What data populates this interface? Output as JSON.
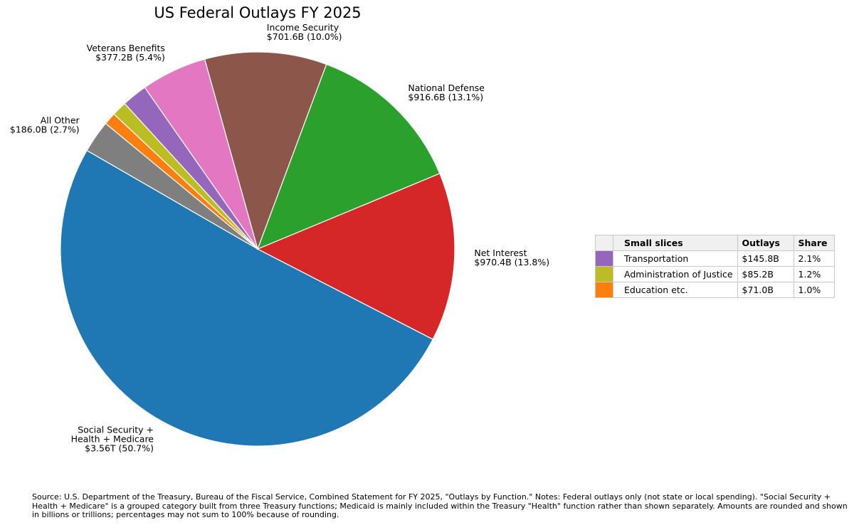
{
  "chart_data": {
    "type": "pie",
    "title": "US Federal Outlays FY 2025",
    "start_angle_deg": 150,
    "direction": "counterclockwise",
    "slices": [
      {
        "label": "Social Security +\nHealth + Medicare",
        "value": 3560,
        "value_text": "$3.56T",
        "pct_text": "50.7%",
        "color": "#1f77b4",
        "labeled": true
      },
      {
        "label": "Net Interest",
        "value": 970.4,
        "value_text": "$970.4B",
        "pct_text": "13.8%",
        "color": "#d62728",
        "labeled": true
      },
      {
        "label": "National Defense",
        "value": 916.6,
        "value_text": "$916.6B",
        "pct_text": "13.1%",
        "color": "#2ca02c",
        "labeled": true
      },
      {
        "label": "Income Security",
        "value": 701.6,
        "value_text": "$701.6B",
        "pct_text": "10.0%",
        "color": "#8c564b",
        "labeled": true
      },
      {
        "label": "Veterans Benefits",
        "value": 377.2,
        "value_text": "$377.2B",
        "pct_text": "5.4%",
        "color": "#e377c2",
        "labeled": true
      },
      {
        "label": "Transportation",
        "value": 145.8,
        "value_text": "$145.8B",
        "pct_text": "2.1%",
        "color": "#9467bd",
        "labeled": false
      },
      {
        "label": "Administration of Justice",
        "value": 85.2,
        "value_text": "$85.2B",
        "pct_text": "1.2%",
        "color": "#bcbd22",
        "labeled": false
      },
      {
        "label": "Education etc.",
        "value": 71.0,
        "value_text": "$71.0B",
        "pct_text": "1.0%",
        "color": "#ff7f0e",
        "labeled": false
      },
      {
        "label": "All Other",
        "value": 186.0,
        "value_text": "$186.0B",
        "pct_text": "2.7%",
        "color": "#7f7f7f",
        "labeled": true
      }
    ]
  },
  "table": {
    "headers": [
      "Small slices",
      "Outlays",
      "Share"
    ],
    "rows": [
      {
        "name": "Transportation",
        "outlays": "$145.8B",
        "share": "2.1%",
        "color": "#9467bd"
      },
      {
        "name": "Administration of Justice",
        "outlays": "$85.2B",
        "share": "1.2%",
        "color": "#bcbd22"
      },
      {
        "name": "Education etc.",
        "outlays": "$71.0B",
        "share": "1.0%",
        "color": "#ff7f0e"
      }
    ]
  },
  "source_note": "Source: U.S. Department of the Treasury, Bureau of the Fiscal Service, Combined Statement for FY 2025, \"Outlays by Function.\" Notes: Federal outlays only (not state or local spending). \"Social Security + Health + Medicare\" is a grouped category built from three Treasury functions; Medicaid is mainly included within the Treasury \"Health\" function rather than shown separately. Amounts are rounded and shown in billions or trillions; percentages may not sum to 100% because of rounding."
}
